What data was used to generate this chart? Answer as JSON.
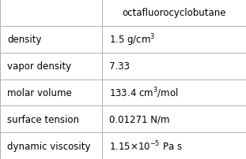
{
  "title": "octafluorocyclobutane",
  "rows": [
    {
      "property": "density",
      "value": "1.5 g/cm$^3$"
    },
    {
      "property": "vapor density",
      "value": "7.33"
    },
    {
      "property": "molar volume",
      "value": "133.4 cm$^3$/mol"
    },
    {
      "property": "surface tension",
      "value": "0.01271 N/m"
    },
    {
      "property": "dynamic viscosity",
      "value": "1.15$\\times$10$^{-5}$ Pa s"
    }
  ],
  "bg_color": "#ffffff",
  "border_color": "#b0b0b0",
  "text_color": "#000000",
  "col_split": 0.415,
  "font_size": 8.5,
  "header_font_size": 8.5
}
